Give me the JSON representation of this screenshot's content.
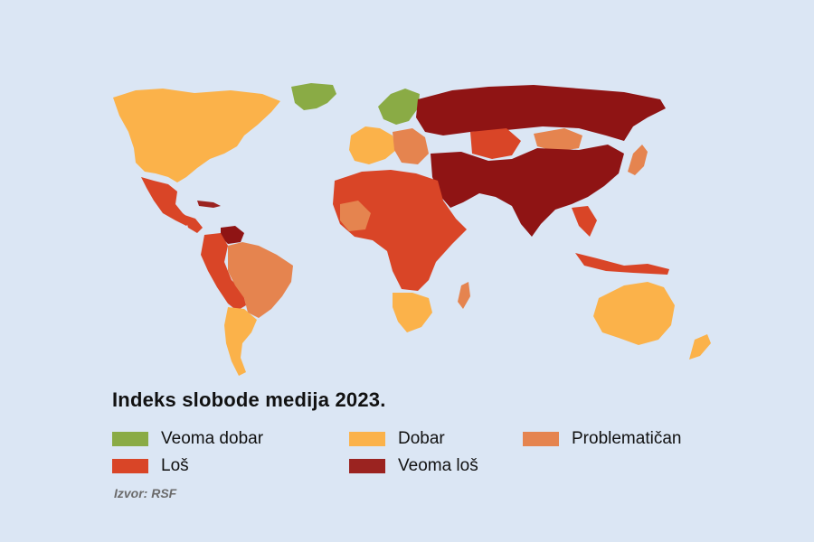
{
  "title": "Indeks slobode medija 2023.",
  "legend": [
    {
      "label": "Veoma dobar",
      "color": "#8aab45"
    },
    {
      "label": "Dobar",
      "color": "#fbb24a"
    },
    {
      "label": "Problematičan",
      "color": "#e5844f"
    },
    {
      "label": "Loš",
      "color": "#d94527"
    },
    {
      "label": "Veoma loš",
      "color": "#9b2320"
    }
  ],
  "source": "Izvor: RSF",
  "colors": {
    "background": "#dbe6f4",
    "veoma_dobar": "#8aab45",
    "dobar": "#fbb24a",
    "problematican": "#e5844f",
    "los": "#d94527",
    "veoma_los": "#8f1414"
  }
}
